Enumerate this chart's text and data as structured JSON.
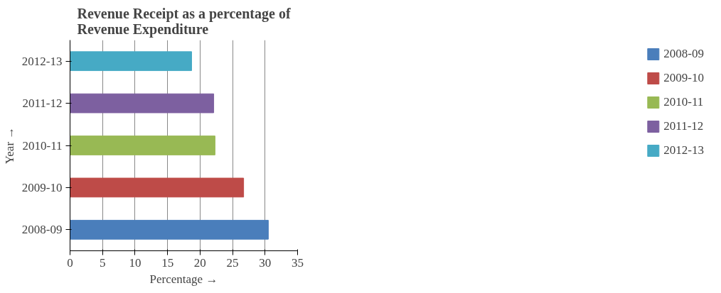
{
  "chart_data": {
    "type": "bar",
    "orientation": "horizontal",
    "title": "Revenue Receipt as a percentage of\nRevenue Expenditure",
    "xlabel": "Percentage →",
    "ylabel": "Year →",
    "categories": [
      "2012-13",
      "2011-12",
      "2010-11",
      "2009-10",
      "2008-09"
    ],
    "series": [
      {
        "name": "2008-09",
        "color": "#4a7ebb",
        "values": [
          null,
          null,
          null,
          null,
          30.5
        ]
      },
      {
        "name": "2009-10",
        "color": "#be4b48",
        "values": [
          null,
          null,
          null,
          26.7,
          null
        ]
      },
      {
        "name": "2010-11",
        "color": "#98b954",
        "values": [
          null,
          null,
          22.3,
          null,
          null
        ]
      },
      {
        "name": "2011-12",
        "color": "#7d60a0",
        "values": [
          null,
          22.1,
          null,
          null,
          null
        ]
      },
      {
        "name": "2012-13",
        "color": "#46aac5",
        "values": [
          18.7,
          null,
          null,
          null,
          null
        ]
      }
    ],
    "xlim": [
      0,
      35
    ],
    "xticks": [
      0,
      5,
      10,
      15,
      20,
      25,
      30,
      35
    ],
    "grid": "x",
    "legend": "right"
  }
}
